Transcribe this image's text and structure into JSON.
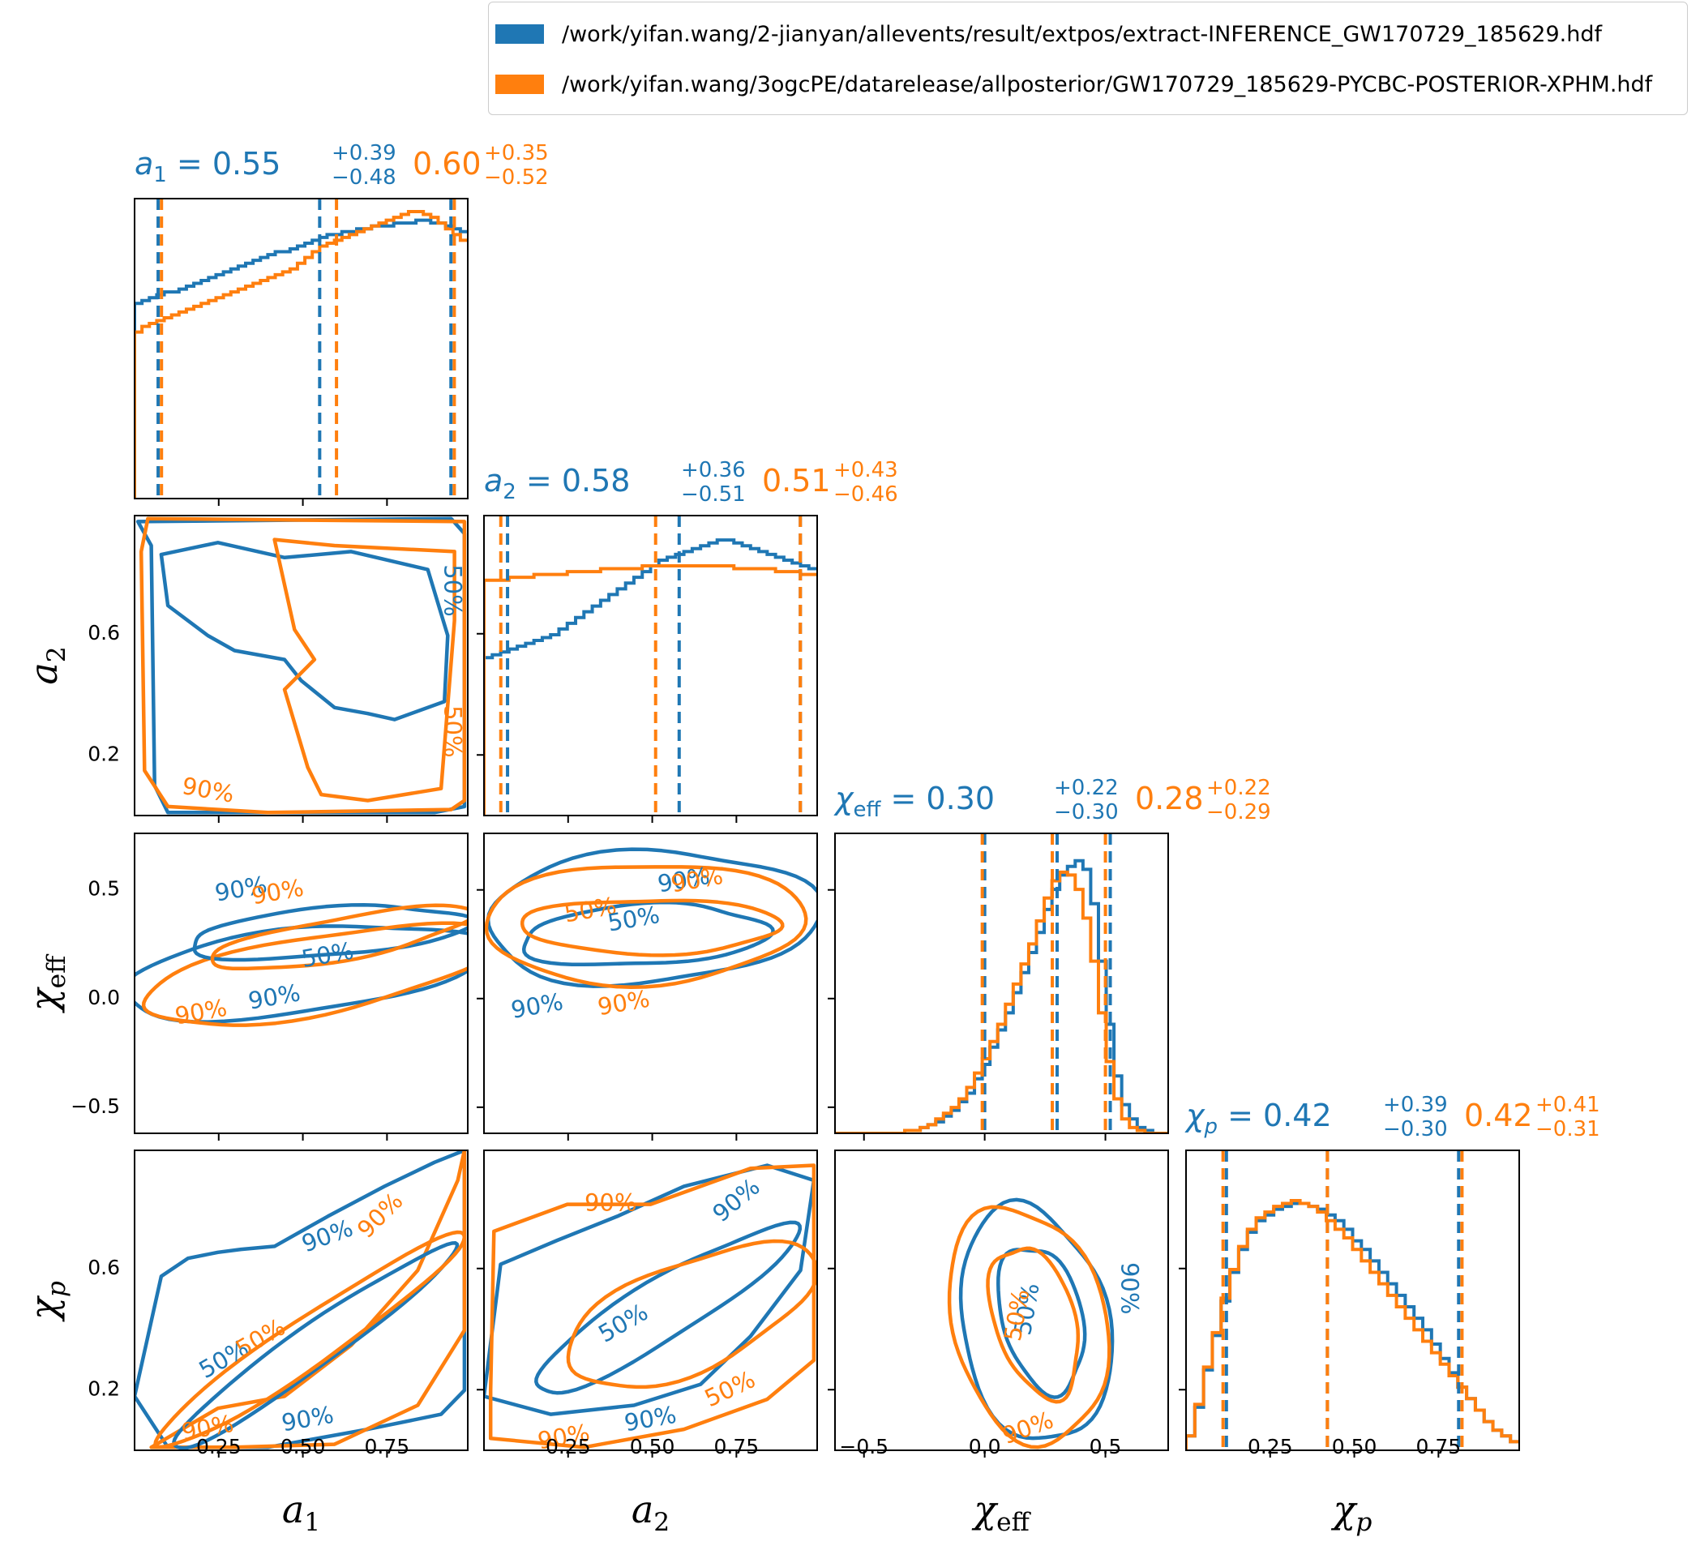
{
  "colors": {
    "primary": "#1f77b4",
    "secondary": "#ff7f0e",
    "axis": "#000000"
  },
  "legend": {
    "items": [
      {
        "color": "#1f77b4",
        "label": "/work/yifan.wang/2-jianyan/allevents/result/extpos/extract-INFERENCE_GW170729_185629.hdf"
      },
      {
        "color": "#ff7f0e",
        "label": "/work/yifan.wang/3ogcPE/datarelease/allposterior/GW170729_185629-PYCBC-POSTERIOR-XPHM.hdf"
      }
    ]
  },
  "chart_data": {
    "type": "corner",
    "parameters": [
      {
        "key": "a1",
        "sym": "a",
        "sub": "1",
        "italic_sub": false,
        "median_blue": "0.55",
        "plus_blue": "+0.39",
        "minus_blue": "−0.48",
        "median_orange": "0.60",
        "plus_orange": "+0.35",
        "minus_orange": "−0.52",
        "range": [
          0.0,
          0.99
        ],
        "ticks": [
          0.25,
          0.5,
          0.75
        ],
        "tick_labels": [
          "0.25",
          "0.50",
          "0.75"
        ],
        "q_blue": [
          0.07,
          0.55,
          0.94
        ],
        "q_orange": [
          0.08,
          0.6,
          0.95
        ]
      },
      {
        "key": "a2",
        "sym": "a",
        "sub": "2",
        "italic_sub": false,
        "median_blue": "0.58",
        "plus_blue": "+0.36",
        "minus_blue": "−0.51",
        "median_orange": "0.51",
        "plus_orange": "+0.43",
        "minus_orange": "−0.46",
        "range": [
          0.0,
          0.99
        ],
        "ticks": [
          0.25,
          0.5,
          0.75
        ],
        "tick_labels": [
          "0.25",
          "0.50",
          "0.75"
        ],
        "yticks": [
          0.2,
          0.6
        ],
        "ytick_labels": [
          "0.2",
          "0.6"
        ],
        "q_blue": [
          0.07,
          0.58,
          0.94
        ],
        "q_orange": [
          0.05,
          0.51,
          0.94
        ]
      },
      {
        "key": "chi_eff",
        "sym": "χ",
        "sub": "eff",
        "italic_sub": false,
        "median_blue": "0.30",
        "plus_blue": "+0.22",
        "minus_blue": "−0.30",
        "median_orange": "0.28",
        "plus_orange": "+0.22",
        "minus_orange": "−0.29",
        "range": [
          -0.62,
          0.76
        ],
        "ticks": [
          -0.5,
          0.0,
          0.5
        ],
        "tick_labels": [
          "−0.5",
          "0.0",
          "0.5"
        ],
        "yticks": [
          -0.5,
          0.0,
          0.5
        ],
        "ytick_labels": [
          "−0.5",
          "0.0",
          "0.5"
        ],
        "q_blue": [
          0.0,
          0.3,
          0.52
        ],
        "q_orange": [
          -0.01,
          0.28,
          0.5
        ]
      },
      {
        "key": "chi_p",
        "sym": "χ",
        "sub": "p",
        "italic_sub": true,
        "median_blue": "0.42",
        "plus_blue": "+0.39",
        "minus_blue": "−0.30",
        "median_orange": "0.42",
        "plus_orange": "+0.41",
        "minus_orange": "−0.31",
        "range": [
          0.0,
          0.99
        ],
        "ticks": [
          0.25,
          0.5,
          0.75
        ],
        "tick_labels": [
          "0.25",
          "0.50",
          "0.75"
        ],
        "yticks": [
          0.2,
          0.6
        ],
        "ytick_labels": [
          "0.2",
          "0.6"
        ],
        "q_blue": [
          0.12,
          0.42,
          0.81
        ],
        "q_orange": [
          0.11,
          0.42,
          0.82
        ]
      }
    ],
    "histograms": {
      "a1": {
        "blue": [
          0.68,
          0.69,
          0.7,
          0.71,
          0.72,
          0.72,
          0.73,
          0.74,
          0.75,
          0.76,
          0.77,
          0.78,
          0.79,
          0.8,
          0.81,
          0.82,
          0.83,
          0.84,
          0.85,
          0.86,
          0.86,
          0.87,
          0.88,
          0.89,
          0.9,
          0.91,
          0.92,
          0.92,
          0.93,
          0.93,
          0.94,
          0.94,
          0.95,
          0.95,
          0.95,
          0.96,
          0.96,
          0.96,
          0.97,
          0.97,
          0.96,
          0.96,
          0.95,
          0.94,
          0.93
        ],
        "orange": [
          0.58,
          0.6,
          0.61,
          0.62,
          0.63,
          0.64,
          0.65,
          0.66,
          0.67,
          0.68,
          0.69,
          0.7,
          0.71,
          0.72,
          0.73,
          0.74,
          0.75,
          0.76,
          0.77,
          0.78,
          0.79,
          0.8,
          0.82,
          0.84,
          0.86,
          0.88,
          0.89,
          0.9,
          0.91,
          0.92,
          0.93,
          0.94,
          0.95,
          0.96,
          0.97,
          0.98,
          0.99,
          1.0,
          1.0,
          0.99,
          0.98,
          0.96,
          0.94,
          0.92,
          0.9
        ]
      },
      "a2": {
        "blue": [
          0.55,
          0.56,
          0.57,
          0.58,
          0.59,
          0.6,
          0.61,
          0.62,
          0.63,
          0.65,
          0.67,
          0.69,
          0.71,
          0.73,
          0.75,
          0.77,
          0.79,
          0.81,
          0.83,
          0.85,
          0.87,
          0.89,
          0.9,
          0.91,
          0.92,
          0.93,
          0.94,
          0.95,
          0.96,
          0.96,
          0.95,
          0.94,
          0.93,
          0.92,
          0.91,
          0.9,
          0.89,
          0.88,
          0.87,
          0.86
        ],
        "orange": [
          0.82,
          0.82,
          0.82,
          0.83,
          0.83,
          0.83,
          0.84,
          0.84,
          0.84,
          0.84,
          0.85,
          0.85,
          0.85,
          0.85,
          0.86,
          0.86,
          0.86,
          0.86,
          0.86,
          0.87,
          0.87,
          0.87,
          0.87,
          0.87,
          0.87,
          0.87,
          0.87,
          0.87,
          0.87,
          0.87,
          0.86,
          0.86,
          0.86,
          0.86,
          0.86,
          0.85,
          0.85,
          0.85,
          0.84,
          0.84
        ]
      },
      "chi_eff": {
        "blue": [
          0.0,
          0.0,
          0.0,
          0.0,
          0.0,
          0.0,
          0.0,
          0.0,
          0.0,
          0.01,
          0.01,
          0.02,
          0.03,
          0.04,
          0.06,
          0.08,
          0.11,
          0.14,
          0.19,
          0.24,
          0.3,
          0.36,
          0.42,
          0.49,
          0.56,
          0.63,
          0.7,
          0.78,
          0.85,
          0.9,
          0.93,
          0.95,
          0.92,
          0.8,
          0.6,
          0.38,
          0.2,
          0.1,
          0.05,
          0.02,
          0.01,
          0.0,
          0.0
        ],
        "orange": [
          0.0,
          0.0,
          0.0,
          0.0,
          0.0,
          0.0,
          0.0,
          0.0,
          0.0,
          0.01,
          0.01,
          0.02,
          0.03,
          0.05,
          0.07,
          0.09,
          0.12,
          0.16,
          0.21,
          0.26,
          0.32,
          0.38,
          0.45,
          0.52,
          0.59,
          0.66,
          0.74,
          0.82,
          0.88,
          0.91,
          0.9,
          0.85,
          0.75,
          0.6,
          0.42,
          0.25,
          0.12,
          0.05,
          0.02,
          0.01,
          0.0,
          0.0,
          0.0
        ]
      },
      "chi_p": {
        "blue": [
          0.05,
          0.15,
          0.28,
          0.4,
          0.52,
          0.62,
          0.7,
          0.76,
          0.8,
          0.82,
          0.84,
          0.85,
          0.86,
          0.86,
          0.85,
          0.84,
          0.82,
          0.8,
          0.77,
          0.73,
          0.7,
          0.66,
          0.62,
          0.58,
          0.54,
          0.5,
          0.46,
          0.42,
          0.37,
          0.32,
          0.27,
          0.22,
          0.18,
          0.14,
          0.1,
          0.07,
          0.05,
          0.03
        ],
        "orange": [
          0.05,
          0.16,
          0.29,
          0.41,
          0.53,
          0.63,
          0.71,
          0.77,
          0.81,
          0.83,
          0.85,
          0.86,
          0.87,
          0.86,
          0.85,
          0.83,
          0.8,
          0.77,
          0.74,
          0.7,
          0.66,
          0.62,
          0.58,
          0.54,
          0.5,
          0.46,
          0.42,
          0.38,
          0.34,
          0.3,
          0.26,
          0.22,
          0.18,
          0.14,
          0.1,
          0.07,
          0.05,
          0.03
        ]
      }
    },
    "contour_labels": {
      "inner": "50%",
      "outer": "90%"
    }
  }
}
